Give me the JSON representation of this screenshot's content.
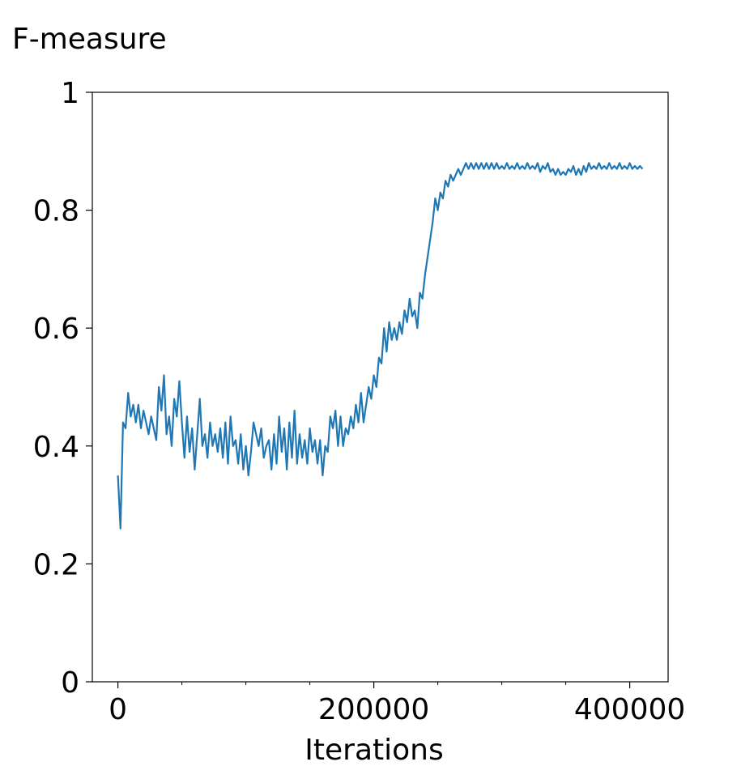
{
  "chart_data": {
    "type": "line",
    "title": "",
    "xlabel": "Iterations",
    "ylabel": "F-measure",
    "xlim": [
      -20000,
      430000
    ],
    "ylim": [
      0,
      1
    ],
    "xticks_major": [
      0,
      200000,
      400000
    ],
    "xtick_labels": [
      "0",
      "200000",
      "400000"
    ],
    "xticks_minor": [
      50000,
      100000,
      150000,
      250000,
      300000,
      350000
    ],
    "yticks": [
      0,
      0.2,
      0.4,
      0.6,
      0.8,
      1
    ],
    "ytick_labels": [
      "0",
      "0.2",
      "0.4",
      "0.6",
      "0.8",
      "1"
    ],
    "grid": false,
    "series": [
      {
        "name": "",
        "color": "#1f77b4",
        "points": [
          [
            0,
            0.35
          ],
          [
            2000,
            0.26
          ],
          [
            4000,
            0.44
          ],
          [
            6000,
            0.43
          ],
          [
            8000,
            0.49
          ],
          [
            10000,
            0.45
          ],
          [
            12000,
            0.47
          ],
          [
            14000,
            0.44
          ],
          [
            16000,
            0.47
          ],
          [
            18000,
            0.43
          ],
          [
            20000,
            0.46
          ],
          [
            22000,
            0.44
          ],
          [
            24000,
            0.42
          ],
          [
            26000,
            0.45
          ],
          [
            28000,
            0.43
          ],
          [
            30000,
            0.41
          ],
          [
            32000,
            0.5
          ],
          [
            34000,
            0.46
          ],
          [
            36000,
            0.52
          ],
          [
            38000,
            0.42
          ],
          [
            40000,
            0.45
          ],
          [
            42000,
            0.4
          ],
          [
            44000,
            0.48
          ],
          [
            46000,
            0.45
          ],
          [
            48000,
            0.51
          ],
          [
            50000,
            0.44
          ],
          [
            52000,
            0.38
          ],
          [
            54000,
            0.45
          ],
          [
            56000,
            0.39
          ],
          [
            58000,
            0.43
          ],
          [
            60000,
            0.36
          ],
          [
            62000,
            0.42
          ],
          [
            64000,
            0.48
          ],
          [
            66000,
            0.4
          ],
          [
            68000,
            0.42
          ],
          [
            70000,
            0.38
          ],
          [
            72000,
            0.44
          ],
          [
            74000,
            0.4
          ],
          [
            76000,
            0.42
          ],
          [
            78000,
            0.39
          ],
          [
            80000,
            0.43
          ],
          [
            82000,
            0.38
          ],
          [
            84000,
            0.44
          ],
          [
            86000,
            0.37
          ],
          [
            88000,
            0.45
          ],
          [
            90000,
            0.4
          ],
          [
            92000,
            0.41
          ],
          [
            94000,
            0.37
          ],
          [
            96000,
            0.42
          ],
          [
            98000,
            0.36
          ],
          [
            100000,
            0.4
          ],
          [
            102000,
            0.35
          ],
          [
            104000,
            0.39
          ],
          [
            106000,
            0.44
          ],
          [
            108000,
            0.42
          ],
          [
            110000,
            0.4
          ],
          [
            112000,
            0.43
          ],
          [
            114000,
            0.38
          ],
          [
            116000,
            0.4
          ],
          [
            118000,
            0.41
          ],
          [
            120000,
            0.36
          ],
          [
            122000,
            0.42
          ],
          [
            124000,
            0.37
          ],
          [
            126000,
            0.45
          ],
          [
            128000,
            0.39
          ],
          [
            130000,
            0.43
          ],
          [
            132000,
            0.36
          ],
          [
            134000,
            0.44
          ],
          [
            136000,
            0.38
          ],
          [
            138000,
            0.46
          ],
          [
            140000,
            0.37
          ],
          [
            142000,
            0.42
          ],
          [
            144000,
            0.38
          ],
          [
            146000,
            0.41
          ],
          [
            148000,
            0.37
          ],
          [
            150000,
            0.43
          ],
          [
            152000,
            0.39
          ],
          [
            154000,
            0.41
          ],
          [
            156000,
            0.37
          ],
          [
            158000,
            0.41
          ],
          [
            160000,
            0.35
          ],
          [
            162000,
            0.4
          ],
          [
            164000,
            0.39
          ],
          [
            166000,
            0.45
          ],
          [
            168000,
            0.43
          ],
          [
            170000,
            0.46
          ],
          [
            172000,
            0.4
          ],
          [
            174000,
            0.45
          ],
          [
            176000,
            0.4
          ],
          [
            178000,
            0.43
          ],
          [
            180000,
            0.42
          ],
          [
            182000,
            0.45
          ],
          [
            184000,
            0.43
          ],
          [
            186000,
            0.47
          ],
          [
            188000,
            0.44
          ],
          [
            190000,
            0.49
          ],
          [
            192000,
            0.44
          ],
          [
            194000,
            0.47
          ],
          [
            196000,
            0.5
          ],
          [
            198000,
            0.48
          ],
          [
            200000,
            0.52
          ],
          [
            202000,
            0.5
          ],
          [
            204000,
            0.55
          ],
          [
            206000,
            0.54
          ],
          [
            208000,
            0.6
          ],
          [
            210000,
            0.56
          ],
          [
            212000,
            0.61
          ],
          [
            214000,
            0.58
          ],
          [
            216000,
            0.6
          ],
          [
            218000,
            0.58
          ],
          [
            220000,
            0.61
          ],
          [
            222000,
            0.59
          ],
          [
            224000,
            0.63
          ],
          [
            226000,
            0.61
          ],
          [
            228000,
            0.65
          ],
          [
            230000,
            0.62
          ],
          [
            232000,
            0.63
          ],
          [
            234000,
            0.6
          ],
          [
            236000,
            0.66
          ],
          [
            238000,
            0.65
          ],
          [
            240000,
            0.69
          ],
          [
            242000,
            0.72
          ],
          [
            244000,
            0.75
          ],
          [
            246000,
            0.78
          ],
          [
            248000,
            0.82
          ],
          [
            250000,
            0.8
          ],
          [
            252000,
            0.83
          ],
          [
            254000,
            0.82
          ],
          [
            256000,
            0.85
          ],
          [
            258000,
            0.84
          ],
          [
            260000,
            0.86
          ],
          [
            262000,
            0.85
          ],
          [
            264000,
            0.86
          ],
          [
            266000,
            0.87
          ],
          [
            268000,
            0.86
          ],
          [
            270000,
            0.87
          ],
          [
            272000,
            0.88
          ],
          [
            274000,
            0.87
          ],
          [
            276000,
            0.88
          ],
          [
            278000,
            0.87
          ],
          [
            280000,
            0.88
          ],
          [
            282000,
            0.87
          ],
          [
            284000,
            0.88
          ],
          [
            286000,
            0.87
          ],
          [
            288000,
            0.88
          ],
          [
            290000,
            0.87
          ],
          [
            292000,
            0.88
          ],
          [
            294000,
            0.87
          ],
          [
            296000,
            0.88
          ],
          [
            298000,
            0.87
          ],
          [
            300000,
            0.875
          ],
          [
            302000,
            0.87
          ],
          [
            304000,
            0.88
          ],
          [
            306000,
            0.87
          ],
          [
            308000,
            0.875
          ],
          [
            310000,
            0.87
          ],
          [
            312000,
            0.88
          ],
          [
            314000,
            0.87
          ],
          [
            316000,
            0.875
          ],
          [
            318000,
            0.87
          ],
          [
            320000,
            0.88
          ],
          [
            322000,
            0.87
          ],
          [
            324000,
            0.875
          ],
          [
            326000,
            0.87
          ],
          [
            328000,
            0.88
          ],
          [
            330000,
            0.865
          ],
          [
            332000,
            0.875
          ],
          [
            334000,
            0.87
          ],
          [
            336000,
            0.88
          ],
          [
            338000,
            0.865
          ],
          [
            340000,
            0.87
          ],
          [
            342000,
            0.86
          ],
          [
            344000,
            0.87
          ],
          [
            346000,
            0.86
          ],
          [
            348000,
            0.865
          ],
          [
            350000,
            0.86
          ],
          [
            352000,
            0.87
          ],
          [
            354000,
            0.865
          ],
          [
            356000,
            0.875
          ],
          [
            358000,
            0.86
          ],
          [
            360000,
            0.87
          ],
          [
            362000,
            0.86
          ],
          [
            364000,
            0.875
          ],
          [
            366000,
            0.865
          ],
          [
            368000,
            0.88
          ],
          [
            370000,
            0.87
          ],
          [
            372000,
            0.875
          ],
          [
            374000,
            0.87
          ],
          [
            376000,
            0.88
          ],
          [
            378000,
            0.87
          ],
          [
            380000,
            0.875
          ],
          [
            382000,
            0.87
          ],
          [
            384000,
            0.88
          ],
          [
            386000,
            0.87
          ],
          [
            388000,
            0.875
          ],
          [
            390000,
            0.87
          ],
          [
            392000,
            0.88
          ],
          [
            394000,
            0.87
          ],
          [
            396000,
            0.875
          ],
          [
            398000,
            0.87
          ],
          [
            400000,
            0.88
          ],
          [
            402000,
            0.87
          ],
          [
            404000,
            0.875
          ],
          [
            406000,
            0.87
          ],
          [
            408000,
            0.875
          ],
          [
            410000,
            0.87
          ]
        ]
      }
    ]
  }
}
